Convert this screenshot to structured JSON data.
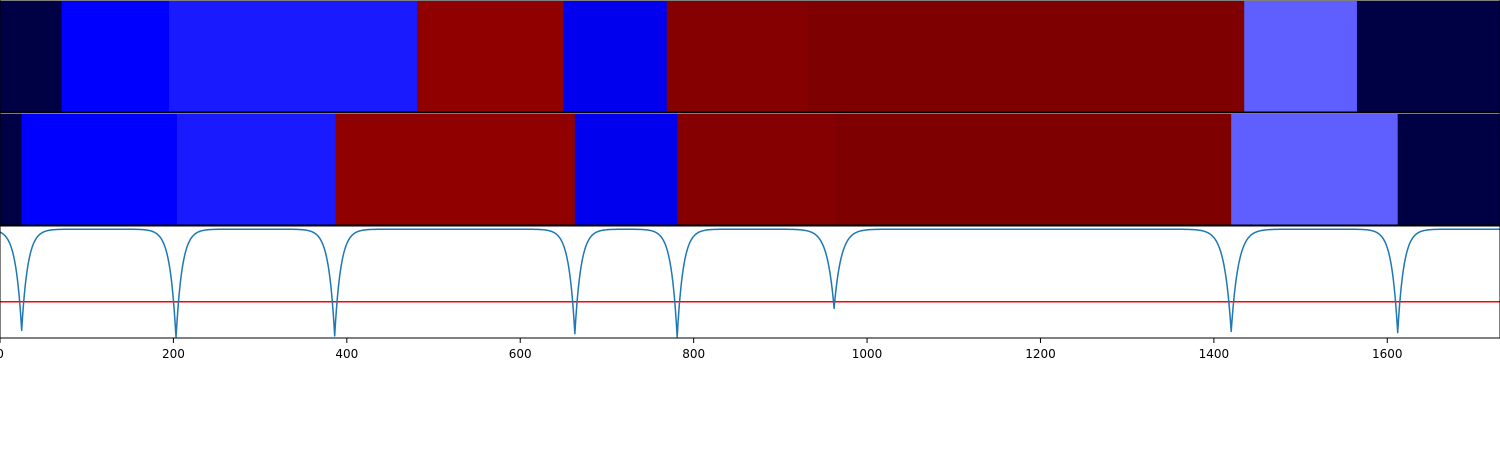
{
  "chart_data": {
    "type": "heatmap",
    "x_axis": {
      "range": [
        0,
        1730
      ],
      "ticks": [
        0,
        200,
        400,
        600,
        800,
        1000,
        1200,
        1400,
        1600
      ],
      "tick_labels": [
        "0",
        "200",
        "400",
        "600",
        "800",
        "1000",
        "1200",
        "1400",
        "1600"
      ]
    },
    "rows": [
      {
        "segments": [
          {
            "start": 0,
            "end": 71,
            "color": "#000045"
          },
          {
            "start": 71,
            "end": 195,
            "color": "#0000ff"
          },
          {
            "start": 195,
            "end": 481,
            "color": "#1a1aff"
          },
          {
            "start": 481,
            "end": 650,
            "color": "#910000"
          },
          {
            "start": 650,
            "end": 769,
            "color": "#0000ee"
          },
          {
            "start": 769,
            "end": 932,
            "color": "#850000"
          },
          {
            "start": 932,
            "end": 1435,
            "color": "#7e0000"
          },
          {
            "start": 1435,
            "end": 1565,
            "color": "#5f5fff"
          },
          {
            "start": 1565,
            "end": 1730,
            "color": "#000045"
          }
        ]
      },
      {
        "segments": [
          {
            "start": 0,
            "end": 25,
            "color": "#000045"
          },
          {
            "start": 25,
            "end": 204,
            "color": "#0000ff"
          },
          {
            "start": 204,
            "end": 387,
            "color": "#1a1aff"
          },
          {
            "start": 387,
            "end": 663,
            "color": "#910000"
          },
          {
            "start": 663,
            "end": 781,
            "color": "#0000ee"
          },
          {
            "start": 781,
            "end": 964,
            "color": "#850000"
          },
          {
            "start": 964,
            "end": 1420,
            "color": "#7e0000"
          },
          {
            "start": 1420,
            "end": 1612,
            "color": "#5f5fff"
          },
          {
            "start": 1612,
            "end": 1730,
            "color": "#000045"
          }
        ]
      }
    ],
    "signal": {
      "color": "#1f77b4",
      "y_range": [
        0,
        1
      ],
      "baseline": 0.02,
      "dips": [
        {
          "x": 25,
          "depth": 0.92,
          "width": 7
        },
        {
          "x": 203,
          "depth": 0.99,
          "width": 7
        },
        {
          "x": 386,
          "depth": 0.97,
          "width": 7
        },
        {
          "x": 663,
          "depth": 0.95,
          "width": 7
        },
        {
          "x": 781,
          "depth": 0.98,
          "width": 7
        },
        {
          "x": 962,
          "depth": 0.72,
          "width": 8
        },
        {
          "x": 1420,
          "depth": 0.93,
          "width": 8
        },
        {
          "x": 1612,
          "depth": 0.94,
          "width": 7
        }
      ],
      "threshold": {
        "y": 0.68,
        "color": "#ff0000"
      }
    }
  }
}
